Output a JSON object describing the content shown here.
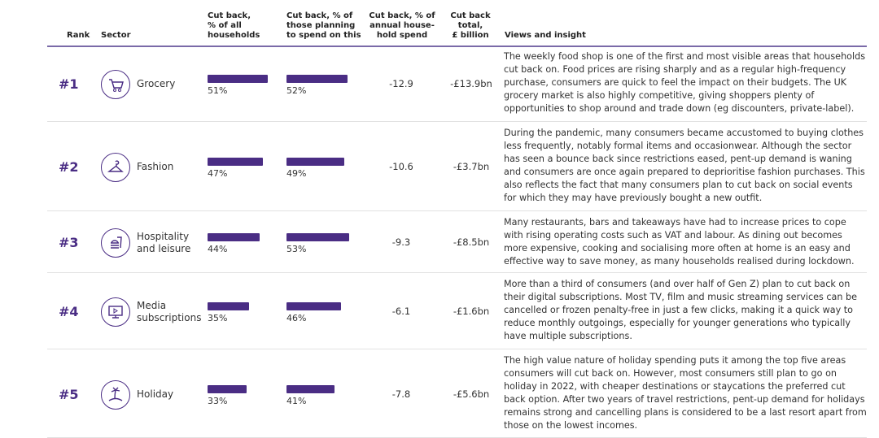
{
  "header": {
    "rank": "Rank",
    "sector": "Sector",
    "col1": "Cut back,\n% of all\nhouseholds",
    "col2": "Cut back, % of\nthose planning\nto spend on this",
    "col3": "Cut back, % of\nannual house-\nhold spend",
    "col4": "Cut back\ntotal,\n£ billion",
    "views": "Views and insight"
  },
  "accent_color": "#4a2d84",
  "rows": [
    {
      "rank": "#1",
      "sector": "Grocery",
      "icon": "shopping-cart-icon",
      "pct_all": 51,
      "pct_all_label": "51%",
      "pct_planning": 52,
      "pct_planning_label": "52%",
      "spend": "-12.9",
      "total": "-£13.9bn",
      "views": "The weekly food shop is one of the first and most visible areas that households cut back on. Food prices are rising sharply and as a regular high-frequency purchase, consumers are quick to feel the impact on their budgets. The UK grocery market is also highly competitive, giving shoppers plenty of opportunities to shop around and trade down (eg discounters, private-label)."
    },
    {
      "rank": "#2",
      "sector": "Fashion",
      "icon": "hanger-icon",
      "pct_all": 47,
      "pct_all_label": "47%",
      "pct_planning": 49,
      "pct_planning_label": "49%",
      "spend": "-10.6",
      "total": "-£3.7bn",
      "views": "During the pandemic, many consumers became accustomed to buying clothes less frequently, notably formal items and occasionwear. Although the sector has seen a bounce back since restrictions eased, pent-up demand is waning and consumers are once again prepared to deprioritise fashion purchases. This also reflects the fact that many consumers plan to cut back on social events for which they may have previously bought a new outfit."
    },
    {
      "rank": "#3",
      "sector": "Hospitality and leisure",
      "icon": "burger-drink-icon",
      "pct_all": 44,
      "pct_all_label": "44%",
      "pct_planning": 53,
      "pct_planning_label": "53%",
      "spend": "-9.3",
      "total": "-£8.5bn",
      "views": "Many restaurants, bars and takeaways have had to increase prices to cope with rising operating costs such as VAT and labour. As dining out becomes more expensive, cooking and socialising more often at home is an easy and effective way to save money, as many households realised during lockdown."
    },
    {
      "rank": "#4",
      "sector": "Media subscriptions",
      "icon": "monitor-play-icon",
      "pct_all": 35,
      "pct_all_label": "35%",
      "pct_planning": 46,
      "pct_planning_label": "46%",
      "spend": "-6.1",
      "total": "-£1.6bn",
      "views": "More than a third of consumers (and over half of Gen Z) plan to cut back on their digital subscriptions. Most TV, film and music streaming services can be cancelled or frozen penalty-free in just a few clicks, making it a quick way to reduce monthly outgoings, especially for younger generations who typically have multiple subscriptions."
    },
    {
      "rank": "#5",
      "sector": "Holiday",
      "icon": "palm-island-icon",
      "pct_all": 33,
      "pct_all_label": "33%",
      "pct_planning": 41,
      "pct_planning_label": "41%",
      "spend": "-7.8",
      "total": "-£5.6bn",
      "views": "The high value nature of holiday spending puts it among the top five areas consumers will cut back on. However, most consumers still plan to go on holiday in 2022, with cheaper destinations or staycations the preferred cut back option. After two years of travel restrictions, pent-up demand for holidays remains strong and cancelling plans is considered to be a last resort apart from those on the lowest incomes."
    }
  ]
}
